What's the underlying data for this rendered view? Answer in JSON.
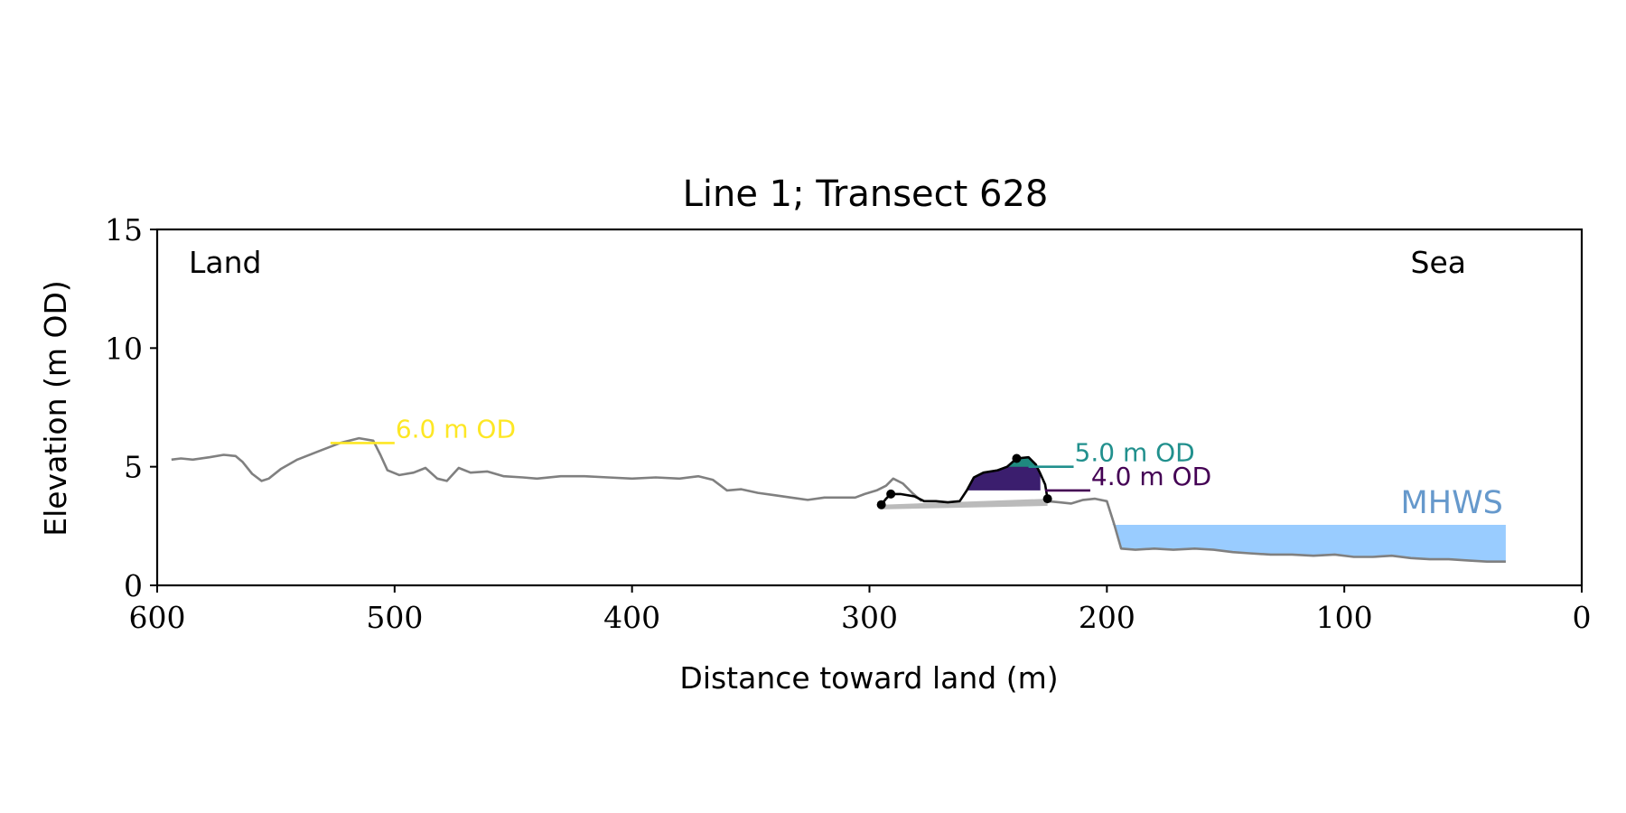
{
  "chart_data": {
    "type": "line",
    "title": "Line 1; Transect 628",
    "xlabel": "Distance toward land (m)",
    "ylabel": "Elevation (m OD)",
    "xlim": [
      600,
      0
    ],
    "ylim": [
      0,
      15
    ],
    "x_inverted": true,
    "x_ticks": [
      600,
      500,
      400,
      300,
      200,
      100,
      0
    ],
    "y_ticks": [
      0,
      5,
      10,
      15
    ],
    "grid": false,
    "corner_labels": {
      "left": "Land",
      "right": "Sea"
    },
    "profile": {
      "color": "#808080",
      "points": [
        [
          594,
          5.3
        ],
        [
          590,
          5.35
        ],
        [
          585,
          5.3
        ],
        [
          578,
          5.4
        ],
        [
          572,
          5.5
        ],
        [
          567,
          5.45
        ],
        [
          564,
          5.2
        ],
        [
          560,
          4.7
        ],
        [
          556,
          4.4
        ],
        [
          553,
          4.5
        ],
        [
          548,
          4.9
        ],
        [
          541,
          5.3
        ],
        [
          532,
          5.65
        ],
        [
          523,
          6.0
        ],
        [
          515,
          6.2
        ],
        [
          509,
          6.1
        ],
        [
          506,
          5.5
        ],
        [
          503,
          4.85
        ],
        [
          498,
          4.65
        ],
        [
          492,
          4.75
        ],
        [
          487,
          4.95
        ],
        [
          482,
          4.5
        ],
        [
          478,
          4.4
        ],
        [
          473,
          4.95
        ],
        [
          468,
          4.75
        ],
        [
          461,
          4.8
        ],
        [
          454,
          4.6
        ],
        [
          446,
          4.55
        ],
        [
          440,
          4.5
        ],
        [
          430,
          4.6
        ],
        [
          420,
          4.6
        ],
        [
          410,
          4.55
        ],
        [
          400,
          4.5
        ],
        [
          390,
          4.55
        ],
        [
          380,
          4.5
        ],
        [
          372,
          4.6
        ],
        [
          366,
          4.45
        ],
        [
          360,
          4.0
        ],
        [
          354,
          4.05
        ],
        [
          347,
          3.9
        ],
        [
          340,
          3.8
        ],
        [
          333,
          3.7
        ],
        [
          326,
          3.6
        ],
        [
          319,
          3.7
        ],
        [
          312,
          3.7
        ],
        [
          306,
          3.7
        ],
        [
          302,
          3.85
        ],
        [
          297,
          4.0
        ],
        [
          293,
          4.2
        ],
        [
          290,
          4.5
        ],
        [
          286,
          4.3
        ],
        [
          282,
          3.9
        ],
        [
          278,
          3.55
        ]
      ]
    },
    "dune": {
      "color": "#000000",
      "points": [
        [
          295,
          3.4
        ],
        [
          293,
          3.65
        ],
        [
          291,
          3.85
        ],
        [
          287,
          3.85
        ],
        [
          281,
          3.75
        ],
        [
          277,
          3.55
        ],
        [
          272,
          3.55
        ],
        [
          267,
          3.5
        ],
        [
          262,
          3.55
        ],
        [
          259,
          4.0
        ],
        [
          256,
          4.55
        ],
        [
          252,
          4.75
        ],
        [
          246,
          4.85
        ],
        [
          242,
          5.0
        ],
        [
          238,
          5.35
        ],
        [
          233,
          5.4
        ],
        [
          230,
          5.1
        ],
        [
          228,
          4.7
        ],
        [
          226,
          4.25
        ],
        [
          225,
          3.65
        ]
      ],
      "markers": [
        [
          295,
          3.4
        ],
        [
          291,
          3.85
        ],
        [
          238,
          5.35
        ],
        [
          225,
          3.65
        ]
      ],
      "base_fill": {
        "color": "#bbbbbb",
        "points": [
          [
            295,
            3.4
          ],
          [
            225,
            3.65
          ]
        ]
      }
    },
    "dune_levels": [
      {
        "level": 4.0,
        "color": "#3b1e6e",
        "line_color": "#440154",
        "fill_x_range": [
          263,
          228
        ],
        "line_x_range": [
          226,
          207
        ]
      },
      {
        "level": 5.0,
        "color": "#1f8a7f",
        "line_color": "#21908d",
        "fill_x_range": [
          245,
          229
        ],
        "line_x_range": [
          233,
          214
        ]
      }
    ],
    "profile_tail": {
      "color": "#808080",
      "points": [
        [
          225,
          3.55
        ],
        [
          220,
          3.5
        ],
        [
          215,
          3.45
        ],
        [
          210,
          3.6
        ],
        [
          205,
          3.65
        ],
        [
          200,
          3.55
        ],
        [
          197,
          2.6
        ],
        [
          194,
          1.55
        ],
        [
          188,
          1.5
        ],
        [
          180,
          1.55
        ],
        [
          172,
          1.5
        ],
        [
          163,
          1.55
        ],
        [
          155,
          1.5
        ],
        [
          147,
          1.4
        ],
        [
          140,
          1.35
        ],
        [
          131,
          1.3
        ],
        [
          122,
          1.3
        ],
        [
          113,
          1.25
        ],
        [
          104,
          1.3
        ],
        [
          96,
          1.2
        ],
        [
          88,
          1.2
        ],
        [
          80,
          1.25
        ],
        [
          72,
          1.15
        ],
        [
          64,
          1.1
        ],
        [
          56,
          1.1
        ],
        [
          48,
          1.05
        ],
        [
          40,
          1.0
        ],
        [
          32,
          1.0
        ]
      ]
    },
    "mhws": {
      "label": "MHWS",
      "label_color": "#6699cc",
      "fill_color": "#99ccff",
      "level": 2.55,
      "x_range": [
        198,
        32
      ]
    },
    "annotations": [
      {
        "text": "6.0 m OD",
        "color": "#fde725",
        "level": 6.0,
        "x_start": 527,
        "x_end": 500
      },
      {
        "text": "5.0 m OD",
        "color": "#21908d",
        "level": 5.0,
        "x_start": 233,
        "x_end": 214
      },
      {
        "text": "4.0 m OD",
        "color": "#440154",
        "level": 4.0,
        "x_start": 226,
        "x_end": 207
      }
    ]
  }
}
